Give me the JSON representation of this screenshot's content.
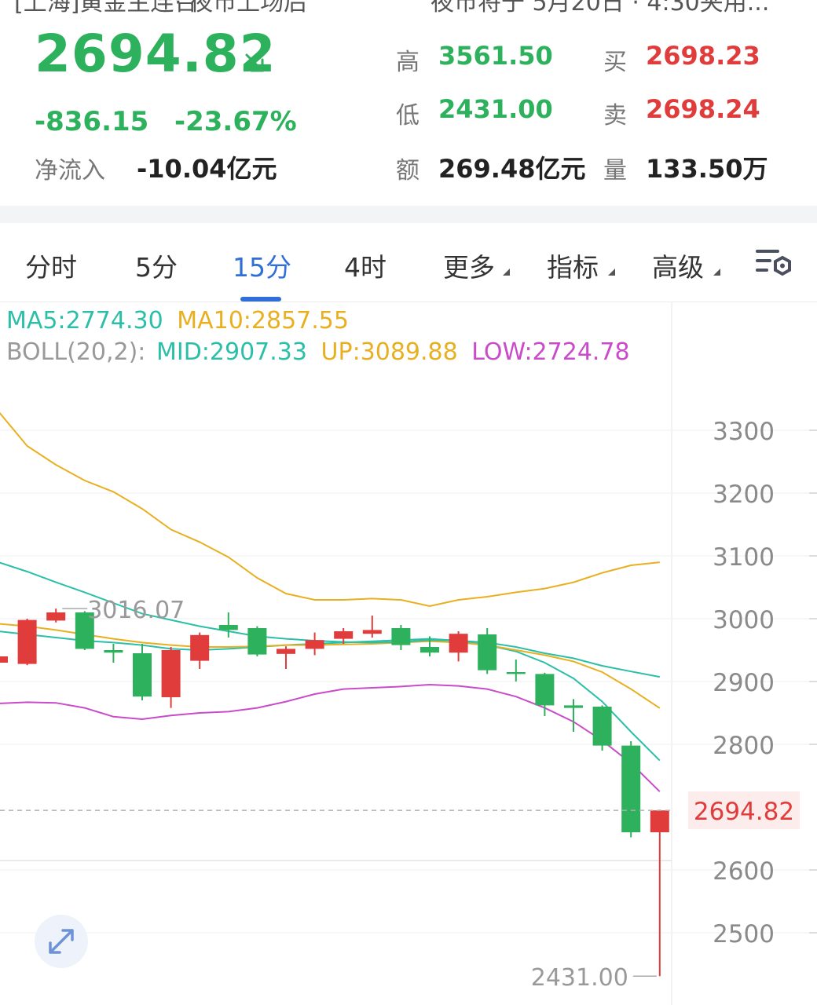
{
  "header": {
    "top_left_cut": "[上海]黄金主连合",
    "top_mid_cut": "· 夜市上场后",
    "top_right_cut": "夜市将于 5月20日 · 4:30夹用..."
  },
  "quote": {
    "price": "2694.82",
    "change": "-836.15",
    "change_pct": "-23.67%",
    "net_inflow_label": "净流入",
    "net_inflow_value": "-10.04亿元",
    "high_label": "高",
    "high_value": "3561.50",
    "low_label": "低",
    "low_value": "2431.00",
    "amount_label": "额",
    "amount_value": "269.48亿元",
    "buy_label": "买",
    "buy_value": "2698.23",
    "sell_label": "卖",
    "sell_value": "2698.24",
    "volume_label": "量",
    "volume_value": "133.50万",
    "colors": {
      "down": "#2eb15c",
      "up": "#e03c3c"
    }
  },
  "tabs": {
    "items": [
      {
        "label": "分时",
        "active": false,
        "has_menu": false
      },
      {
        "label": "5分",
        "active": false,
        "has_menu": false
      },
      {
        "label": "15分",
        "active": true,
        "has_menu": false
      },
      {
        "label": "4时",
        "active": false,
        "has_menu": false
      },
      {
        "label": "更多",
        "active": false,
        "has_menu": true
      },
      {
        "label": "指标",
        "active": false,
        "has_menu": true
      },
      {
        "label": "高级",
        "active": false,
        "has_menu": true
      }
    ],
    "settings_icon": "chart-settings-icon",
    "accent": "#2f6fd6"
  },
  "legend": {
    "ma5": "MA5:2774.30",
    "ma10": "MA10:2857.55",
    "boll_prefix": "BOLL(20,2):",
    "mid": "MID:2907.33",
    "up": "UP:3089.88",
    "low": "LOW:2724.78"
  },
  "chart_data": {
    "type": "candlestick",
    "y_ticks": [
      3300,
      3200,
      3100,
      3000,
      2900,
      2800,
      2600,
      2500
    ],
    "ylim": [
      2430,
      3390
    ],
    "current_price_label": "2694.82",
    "current_price": 2694.82,
    "high_marker": {
      "label": "3016.07",
      "value": 3016.07,
      "candle_index": 2
    },
    "low_marker": {
      "label": "2431.00",
      "value": 2431.0,
      "candle_index": 23
    },
    "candles": [
      {
        "o": 2930,
        "c": 2940,
        "h": 2940,
        "l": 2930
      },
      {
        "o": 2928,
        "c": 2998,
        "h": 3000,
        "l": 2926
      },
      {
        "o": 2997,
        "c": 3010,
        "h": 3016.07,
        "l": 2994
      },
      {
        "o": 3010,
        "c": 2952,
        "h": 3012,
        "l": 2950
      },
      {
        "o": 2950,
        "c": 2946,
        "h": 2960,
        "l": 2930
      },
      {
        "o": 2945,
        "c": 2876,
        "h": 2960,
        "l": 2870
      },
      {
        "o": 2875,
        "c": 2950,
        "h": 2955,
        "l": 2858
      },
      {
        "o": 2933,
        "c": 2974,
        "h": 2978,
        "l": 2920
      },
      {
        "o": 2990,
        "c": 2982,
        "h": 3010,
        "l": 2970
      },
      {
        "o": 2985,
        "c": 2943,
        "h": 2988,
        "l": 2940
      },
      {
        "o": 2944,
        "c": 2952,
        "h": 2956,
        "l": 2920
      },
      {
        "o": 2952,
        "c": 2966,
        "h": 2978,
        "l": 2942
      },
      {
        "o": 2968,
        "c": 2980,
        "h": 2985,
        "l": 2960
      },
      {
        "o": 2976,
        "c": 2982,
        "h": 3005,
        "l": 2970
      },
      {
        "o": 2985,
        "c": 2958,
        "h": 2990,
        "l": 2950
      },
      {
        "o": 2955,
        "c": 2946,
        "h": 2972,
        "l": 2940
      },
      {
        "o": 2946,
        "c": 2976,
        "h": 2980,
        "l": 2932
      },
      {
        "o": 2975,
        "c": 2918,
        "h": 2985,
        "l": 2912
      },
      {
        "o": 2915,
        "c": 2912,
        "h": 2935,
        "l": 2900
      },
      {
        "o": 2912,
        "c": 2862,
        "h": 2914,
        "l": 2845
      },
      {
        "o": 2862,
        "c": 2858,
        "h": 2872,
        "l": 2820
      },
      {
        "o": 2860,
        "c": 2798,
        "h": 2862,
        "l": 2790
      },
      {
        "o": 2798,
        "c": 2660,
        "h": 2805,
        "l": 2652
      },
      {
        "o": 2660,
        "c": 2694.82,
        "h": 2696,
        "l": 2431
      }
    ],
    "series": [
      {
        "key": "ma5",
        "color": "#2bbfa8",
        "values": [
          2980,
          2975,
          2970,
          2965,
          2962,
          2958,
          2952,
          2950,
          2952,
          2955,
          2958,
          2960,
          2962,
          2964,
          2966,
          2968,
          2965,
          2958,
          2948,
          2930,
          2905,
          2868,
          2820,
          2774.3
        ]
      },
      {
        "key": "ma10",
        "color": "#e8b020",
        "values": [
          2992,
          2988,
          2982,
          2975,
          2968,
          2962,
          2958,
          2955,
          2955,
          2956,
          2958,
          2958,
          2959,
          2960,
          2962,
          2964,
          2962,
          2958,
          2950,
          2942,
          2932,
          2915,
          2888,
          2857.55
        ]
      },
      {
        "key": "boll_mid",
        "color": "#2bbfa8",
        "values": [
          3090,
          3075,
          3058,
          3042,
          3025,
          3008,
          2998,
          2988,
          2980,
          2972,
          2968,
          2965,
          2963,
          2962,
          2963,
          2966,
          2965,
          2962,
          2955,
          2945,
          2937,
          2925,
          2916,
          2907.33
        ]
      },
      {
        "key": "boll_up",
        "color": "#e8b020",
        "values": [
          3330,
          3275,
          3245,
          3220,
          3202,
          3175,
          3142,
          3122,
          3098,
          3065,
          3040,
          3030,
          3030,
          3032,
          3030,
          3020,
          3030,
          3035,
          3042,
          3048,
          3058,
          3073,
          3085,
          3089.88
        ]
      },
      {
        "key": "boll_low",
        "color": "#c94bc9",
        "values": [
          2865,
          2867,
          2866,
          2858,
          2844,
          2840,
          2846,
          2850,
          2852,
          2858,
          2868,
          2880,
          2888,
          2890,
          2892,
          2895,
          2893,
          2888,
          2876,
          2858,
          2836,
          2806,
          2770,
          2724.78
        ]
      }
    ]
  },
  "controls": {
    "expand_icon": "expand-diagonal-icon"
  }
}
